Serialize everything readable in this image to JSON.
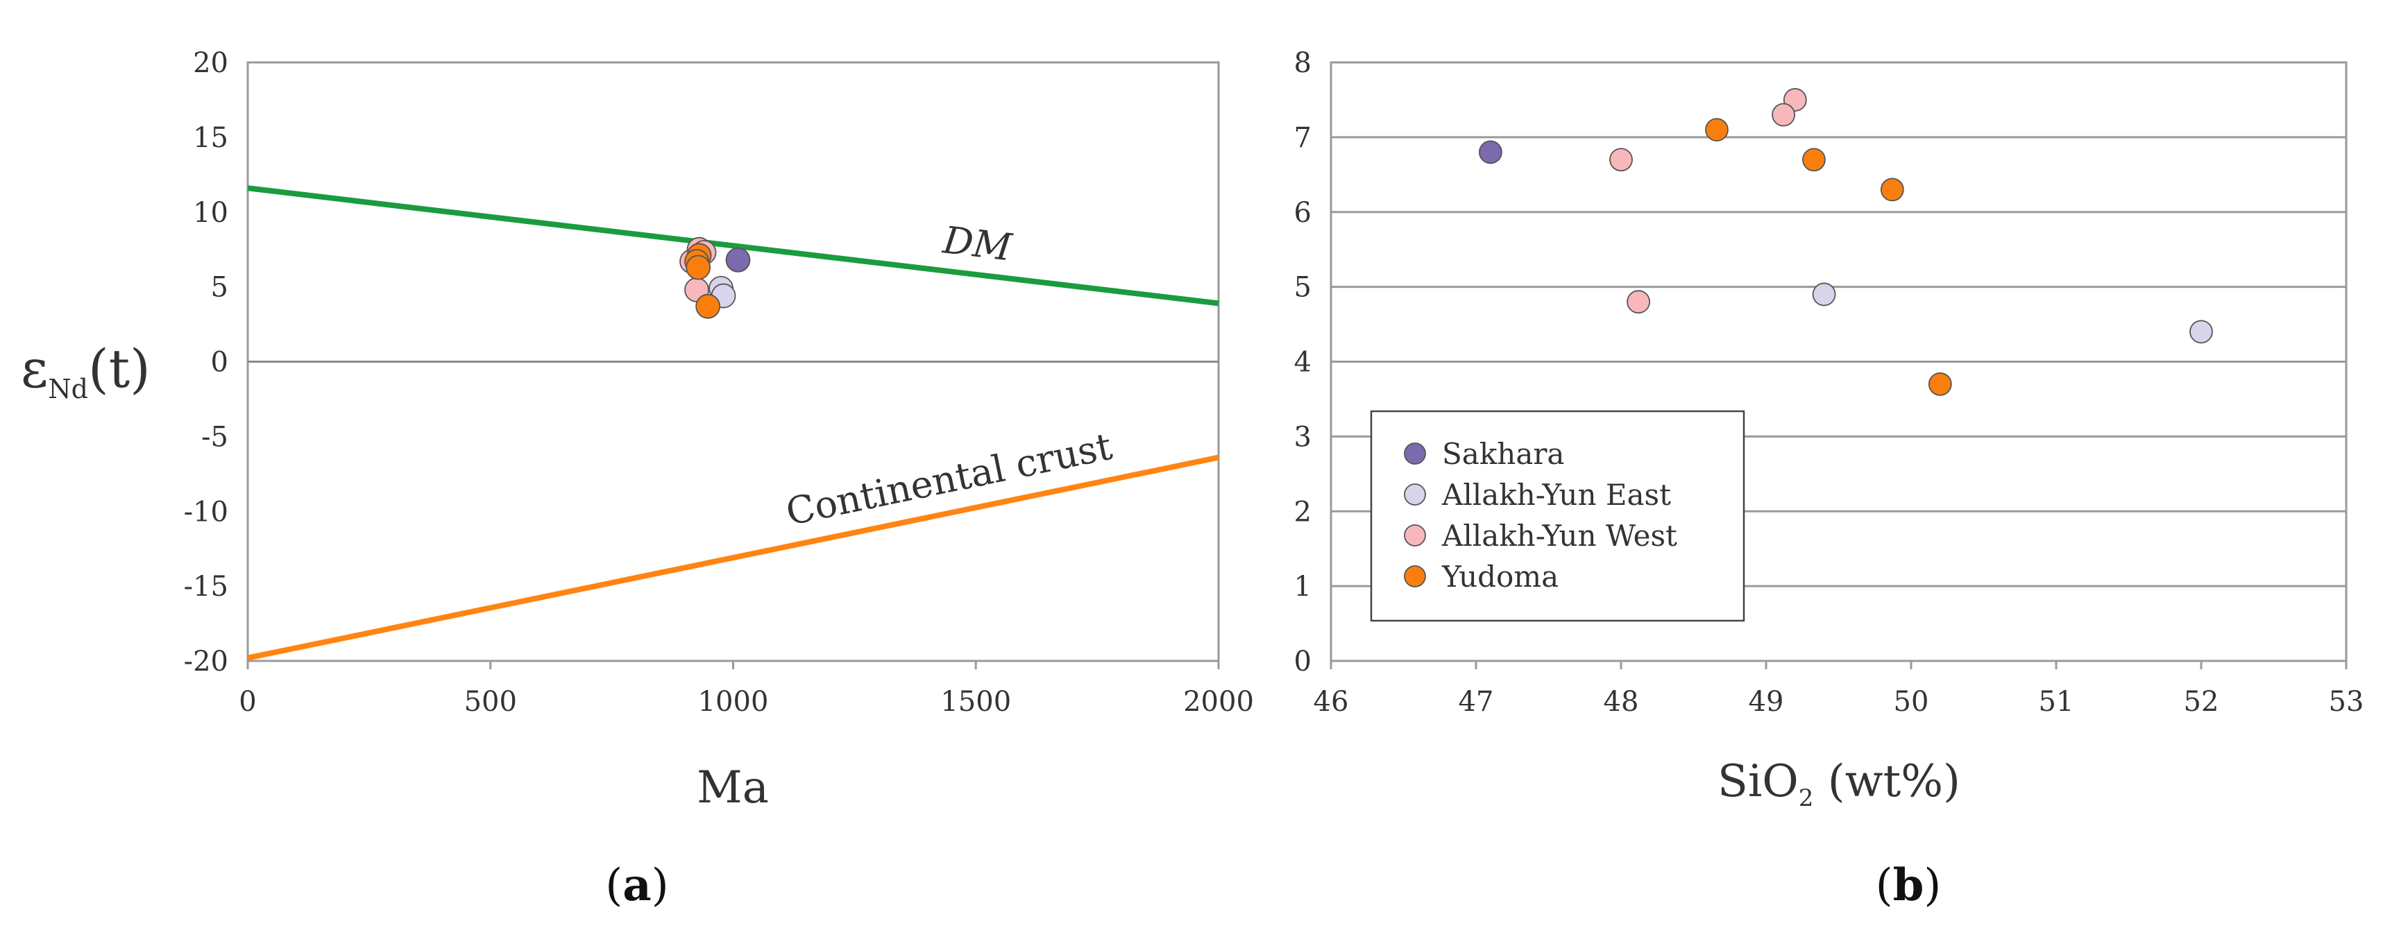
{
  "chart_data": [
    {
      "type": "scatter",
      "panel_label": "a",
      "xlabel": "Ma",
      "ylabel": {
        "main": "ε",
        "sub": "Nd",
        "tail": "(t)"
      },
      "xlim": [
        0,
        2000
      ],
      "ylim": [
        -20,
        20
      ],
      "x_ticks": [
        0,
        500,
        1000,
        1500,
        2000
      ],
      "y_ticks": [
        20,
        15,
        10,
        5,
        0,
        -5,
        -10,
        -15,
        -20
      ],
      "grid": "horizontal zero line",
      "lines": [
        {
          "name": "DM",
          "label": "DM",
          "color": "#1a9c3e",
          "x": [
            0,
            2000
          ],
          "y": [
            11.6,
            3.9
          ]
        },
        {
          "name": "Continental crust",
          "label": "Continental crust",
          "color": "#ff8412",
          "x": [
            0,
            2000
          ],
          "y": [
            -19.8,
            -6.4
          ]
        }
      ],
      "series": [
        {
          "name": "Sakhara",
          "color": "#7b6aad",
          "points": [
            {
              "x": 1010,
              "y": 6.8
            }
          ]
        },
        {
          "name": "Allakh-Yun East",
          "color": "#d8d4ec",
          "points": [
            {
              "x": 975,
              "y": 4.9
            },
            {
              "x": 980,
              "y": 4.4
            }
          ]
        },
        {
          "name": "Allakh-Yun West",
          "color": "#f8b8bb",
          "points": [
            {
              "x": 930,
              "y": 7.5
            },
            {
              "x": 940,
              "y": 7.3
            },
            {
              "x": 915,
              "y": 6.7
            },
            {
              "x": 925,
              "y": 4.8
            }
          ]
        },
        {
          "name": "Yudoma",
          "color": "#f97e0e",
          "points": [
            {
              "x": 930,
              "y": 7.1
            },
            {
              "x": 925,
              "y": 6.7
            },
            {
              "x": 928,
              "y": 6.3
            },
            {
              "x": 948,
              "y": 3.7
            }
          ]
        }
      ]
    },
    {
      "type": "scatter",
      "panel_label": "b",
      "xlabel": {
        "main": "SiO",
        "sub": "2",
        "tail": " (wt%)"
      },
      "ylabel": "",
      "xlim": [
        46,
        53
      ],
      "ylim": [
        0,
        8
      ],
      "x_ticks": [
        46,
        47,
        48,
        49,
        50,
        51,
        52,
        53
      ],
      "y_ticks": [
        8,
        7,
        6,
        5,
        4,
        3,
        2,
        1,
        0
      ],
      "grid": "horizontal",
      "legend": {
        "position": "bottom-left",
        "entries": [
          "Sakhara",
          "Allakh-Yun East",
          "Allakh-Yun West",
          "Yudoma"
        ]
      },
      "series": [
        {
          "name": "Sakhara",
          "color": "#7b6aad",
          "points": [
            {
              "x": 47.1,
              "y": 6.8
            }
          ]
        },
        {
          "name": "Allakh-Yun East",
          "color": "#d8d4ec",
          "points": [
            {
              "x": 49.4,
              "y": 4.9
            },
            {
              "x": 52.0,
              "y": 4.4
            }
          ]
        },
        {
          "name": "Allakh-Yun West",
          "color": "#f8b8bb",
          "points": [
            {
              "x": 49.2,
              "y": 7.5
            },
            {
              "x": 49.12,
              "y": 7.3
            },
            {
              "x": 48.0,
              "y": 6.7
            },
            {
              "x": 48.12,
              "y": 4.8
            }
          ]
        },
        {
          "name": "Yudoma",
          "color": "#f97e0e",
          "points": [
            {
              "x": 48.66,
              "y": 7.1
            },
            {
              "x": 49.33,
              "y": 6.7
            },
            {
              "x": 49.87,
              "y": 6.3
            },
            {
              "x": 50.2,
              "y": 3.7
            }
          ]
        }
      ]
    }
  ]
}
